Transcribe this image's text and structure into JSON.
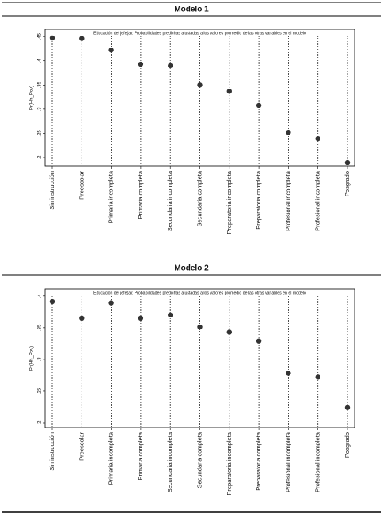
{
  "chart_data": [
    {
      "type": "scatter",
      "title": "Modelo 1",
      "subtitle": "Educación del jefe(a): Probabilidades predichas ajustadas a los valores promedio de las otras variables en el modelo",
      "y_label": "Pr(Hh_Pov)",
      "categories": [
        "Sin instrucción",
        "Preescolar",
        "Primaria incompleta",
        "Primaria completa",
        "Secundaria incompleta",
        "Secundaria completa",
        "Preparatoria incompleta",
        "Preparatoria completa",
        "Profesional incompleta",
        "Profesional incompleta",
        "Posgrado"
      ],
      "values": [
        0.447,
        0.446,
        0.422,
        0.393,
        0.39,
        0.35,
        0.337,
        0.308,
        0.252,
        0.239,
        0.19
      ],
      "color": "#333333",
      "ylim": [
        0.182,
        0.465
      ],
      "yticks": [
        {
          "value": 0.2,
          "label": ".2"
        },
        {
          "value": 0.25,
          "label": ".25"
        },
        {
          "value": 0.3,
          "label": ".3"
        },
        {
          "value": 0.35,
          "label": ".35"
        },
        {
          "value": 0.4,
          "label": ".4"
        },
        {
          "value": 0.45,
          "label": ".45"
        }
      ]
    },
    {
      "type": "scatter",
      "title": "Modelo 2",
      "subtitle": "Educación del jefe(a): Probabilidades predichas ajustadas a los valores promedio de las otras variables en el modelo",
      "y_label": "Pr(Hh_Pov)",
      "categories": [
        "Sin instrucción",
        "Preescolar",
        "Primaria incompleta",
        "Primaria completa",
        "Secundaria incompleta",
        "Secundaria completa",
        "Preparatoria incompleta",
        "Preparatoria completa",
        "Profesional incompleta",
        "Profesional incompleta",
        "Posgrado"
      ],
      "values": [
        0.391,
        0.365,
        0.389,
        0.365,
        0.37,
        0.351,
        0.343,
        0.329,
        0.278,
        0.272,
        0.224
      ],
      "color": "#333333",
      "ylim": [
        0.1925,
        0.411
      ],
      "yticks": [
        {
          "value": 0.2,
          "label": ".2"
        },
        {
          "value": 0.25,
          "label": ".25"
        },
        {
          "value": 0.3,
          "label": ".3"
        },
        {
          "value": 0.35,
          "label": ".35"
        },
        {
          "value": 0.4,
          "label": ".4"
        }
      ]
    }
  ]
}
